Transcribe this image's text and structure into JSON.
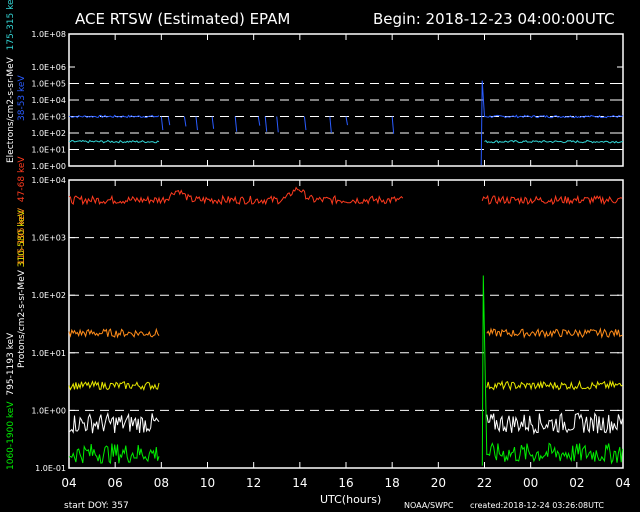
{
  "header": {
    "title": "ACE RTSW (Estimated) EPAM",
    "begin": "Begin: 2018-12-23 04:00:00UTC"
  },
  "footer": {
    "start_doy": "start DOY:  357",
    "xlabel": "UTC(hours)",
    "credit": "NOAA/SWPC",
    "created": "created:2018-12-24 03:26:08UTC"
  },
  "colors": {
    "e38": "#2a5cff",
    "e175": "#33d3d3",
    "p47": "#ff3b1f",
    "p115": "#ff8c1a",
    "p310": "#e8e800",
    "p795": "#ffffff",
    "p1060": "#00ee00",
    "axes": "#ffffff",
    "grid": "#ffffff"
  },
  "chart_data": [
    {
      "type": "line",
      "title": "Electrons",
      "ylabel_prefix": "Electrons/cm2-s-sr-MeV",
      "y_scale": "log",
      "ylim": [
        1,
        100000000
      ],
      "yticks": [
        "1.0E+00",
        "1.0E+01",
        "1.0E+02",
        "1.0E+03",
        "1.0E+04",
        "1.0E+05",
        "1.0E+06"
      ],
      "ytick_values": [
        1,
        10,
        100,
        1000,
        10000,
        100000,
        1000000
      ],
      "ytick_top_label": "1.0E+08",
      "xlim": [
        4,
        28
      ],
      "grid_dashed_at": [
        10,
        100,
        1000,
        10000,
        100000
      ],
      "series": [
        {
          "name": "38-53 keV",
          "color_key": "e38",
          "base": 1000,
          "segments": [
            [
              4,
              7.9
            ],
            [
              22.0,
              28
            ]
          ],
          "spike": {
            "x": 21.9,
            "y": 150000
          },
          "drops": [
            [
              8.0,
              150
            ],
            [
              8.3,
              300
            ],
            [
              9.0,
              250
            ],
            [
              9.5,
              150
            ],
            [
              10.2,
              180
            ],
            [
              11.2,
              120
            ],
            [
              12.2,
              280
            ],
            [
              12.5,
              120
            ],
            [
              13.0,
              110
            ],
            [
              14.2,
              150
            ],
            [
              15.3,
              100
            ],
            [
              16.0,
              300
            ],
            [
              18.0,
              90
            ]
          ]
        },
        {
          "name": "175-315 keV",
          "color_key": "e175",
          "base": 30,
          "segments": [
            [
              4,
              7.9
            ],
            [
              22.0,
              28
            ]
          ]
        }
      ]
    },
    {
      "type": "line",
      "title": "Protons",
      "ylabel_prefix": "Protons/cm2-s-sr-MeV",
      "y_scale": "log",
      "ylim": [
        0.1,
        10000
      ],
      "yticks": [
        "1.0E-01",
        "1.0E+00",
        "1.0E+01",
        "1.0E+02",
        "1.0E+03",
        "1.0E+04"
      ],
      "ytick_values": [
        0.1,
        1,
        10,
        100,
        1000,
        10000
      ],
      "xlim": [
        4,
        28
      ],
      "xticks": [
        "04",
        "06",
        "08",
        "10",
        "12",
        "14",
        "16",
        "18",
        "20",
        "22",
        "00",
        "02",
        "04"
      ],
      "xtick_values": [
        4,
        6,
        8,
        10,
        12,
        14,
        16,
        18,
        20,
        22,
        24,
        26,
        28
      ],
      "grid_dashed_at": [
        1,
        10,
        100,
        1000
      ],
      "series": [
        {
          "name": "47-68 keV",
          "color_key": "p47",
          "base": 4500,
          "segments": [
            [
              4,
              18.5
            ],
            [
              21.9,
              28
            ]
          ],
          "bumps": [
            [
              8.7,
              6500
            ],
            [
              13.9,
              7000
            ]
          ]
        },
        {
          "name": "115-195 keV",
          "color_key": "p115",
          "base": 22,
          "segments": [
            [
              4,
              7.9
            ],
            [
              22.1,
              28
            ]
          ]
        },
        {
          "name": "310-580 keV",
          "color_key": "p310",
          "base": 2.7,
          "segments": [
            [
              4,
              7.9
            ],
            [
              22.1,
              28
            ]
          ]
        },
        {
          "name": "795-1193 keV",
          "color_key": "p795",
          "base": 0.6,
          "segments": [
            [
              4,
              7.9
            ],
            [
              22.1,
              28
            ]
          ]
        },
        {
          "name": "1060-1900 keV",
          "color_key": "p1060",
          "base": 0.18,
          "segments": [
            [
              4,
              7.9
            ],
            [
              22.1,
              28
            ]
          ],
          "spike": {
            "x": 21.95,
            "y": 220
          }
        }
      ]
    }
  ]
}
